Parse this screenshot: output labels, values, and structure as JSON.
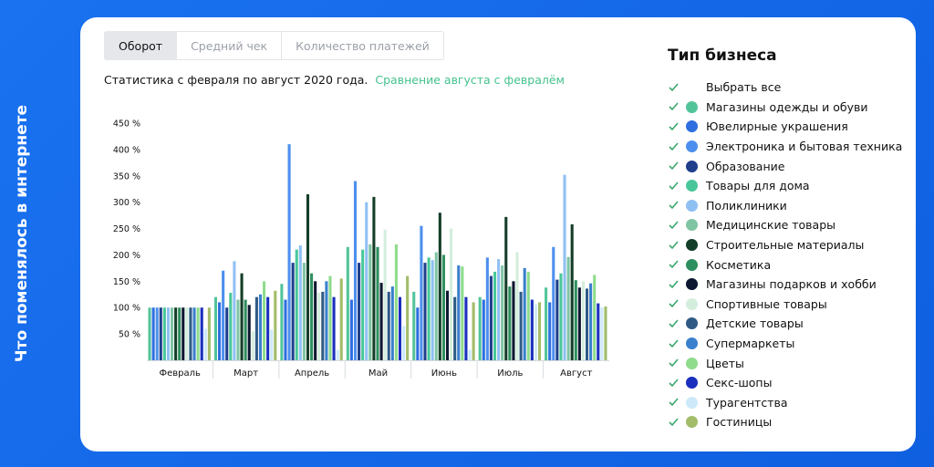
{
  "side_title": "Что поменялось в интернете",
  "tabs": [
    {
      "label": "Оборот",
      "active": true
    },
    {
      "label": "Средний чек",
      "active": false
    },
    {
      "label": "Количество платежей",
      "active": false
    }
  ],
  "subtitle": {
    "text": "Статистика с февраля по август 2020 года.",
    "link": "Сравнение августа с февралём"
  },
  "legend": {
    "title": "Тип бизнеса",
    "select_all": "Выбрать все",
    "check_color": "#3aa66e"
  },
  "chart_data": {
    "type": "bar",
    "ylim": [
      0,
      450
    ],
    "yticks": [
      50,
      100,
      150,
      200,
      250,
      300,
      350,
      400,
      450
    ],
    "ytick_labels": [
      "50 %",
      "100 %",
      "150 %",
      "200 %",
      "250 %",
      "300 %",
      "350 %",
      "400 %",
      "450 %"
    ],
    "grid": false,
    "legend_position": "right",
    "categories": [
      "Февраль",
      "Март",
      "Апрель",
      "Май",
      "Июнь",
      "Июль",
      "Август"
    ],
    "series": [
      {
        "name": "Магазины одежды и обуви",
        "color": "#52c49a",
        "values": [
          100,
          120,
          145,
          215,
          130,
          120,
          138
        ]
      },
      {
        "name": "Ювелирные украшения",
        "color": "#2e6fe0",
        "values": [
          100,
          110,
          115,
          115,
          100,
          115,
          110
        ]
      },
      {
        "name": "Электроника и бытовая техника",
        "color": "#4d8fee",
        "values": [
          100,
          170,
          410,
          340,
          255,
          195,
          215
        ]
      },
      {
        "name": "Образование",
        "color": "#1f3f8c",
        "values": [
          100,
          100,
          185,
          185,
          185,
          160,
          153
        ]
      },
      {
        "name": "Товары для дома",
        "color": "#49c79a",
        "values": [
          100,
          128,
          210,
          210,
          195,
          168,
          165
        ]
      },
      {
        "name": "Поликлиники",
        "color": "#8fc0f3",
        "values": [
          100,
          188,
          218,
          300,
          190,
          192,
          352
        ]
      },
      {
        "name": "Медицинские товары",
        "color": "#7fc4a3",
        "values": [
          100,
          115,
          185,
          220,
          205,
          180,
          196
        ]
      },
      {
        "name": "Строительные материалы",
        "color": "#143d27",
        "values": [
          100,
          165,
          315,
          310,
          280,
          272,
          258
        ]
      },
      {
        "name": "Косметика",
        "color": "#2e8f5e",
        "values": [
          100,
          115,
          165,
          215,
          200,
          140,
          152
        ]
      },
      {
        "name": "Магазины подарков и хобби",
        "color": "#0d1730",
        "values": [
          100,
          105,
          150,
          147,
          132,
          150,
          138
        ]
      },
      {
        "name": "Спортивные товары",
        "color": "#d4eedd",
        "values": [
          100,
          55,
          128,
          248,
          250,
          205,
          150
        ]
      },
      {
        "name": "Детские товары",
        "color": "#2f5a86",
        "values": [
          100,
          120,
          130,
          130,
          120,
          130,
          136
        ]
      },
      {
        "name": "Супермаркеты",
        "color": "#3a80cc",
        "values": [
          100,
          125,
          150,
          140,
          180,
          175,
          146
        ]
      },
      {
        "name": "Цветы",
        "color": "#8edc8c",
        "values": [
          100,
          150,
          160,
          220,
          178,
          168,
          162
        ]
      },
      {
        "name": "Секс-шопы",
        "color": "#1a2fbe",
        "values": [
          100,
          120,
          120,
          120,
          120,
          115,
          108
        ]
      },
      {
        "name": "Турагентства",
        "color": "#cde9f9",
        "values": [
          60,
          58,
          20,
          65,
          20,
          106,
          100
        ]
      },
      {
        "name": "Гостиницы",
        "color": "#a2bc6a",
        "values": [
          100,
          132,
          155,
          160,
          110,
          110,
          102
        ]
      }
    ]
  }
}
